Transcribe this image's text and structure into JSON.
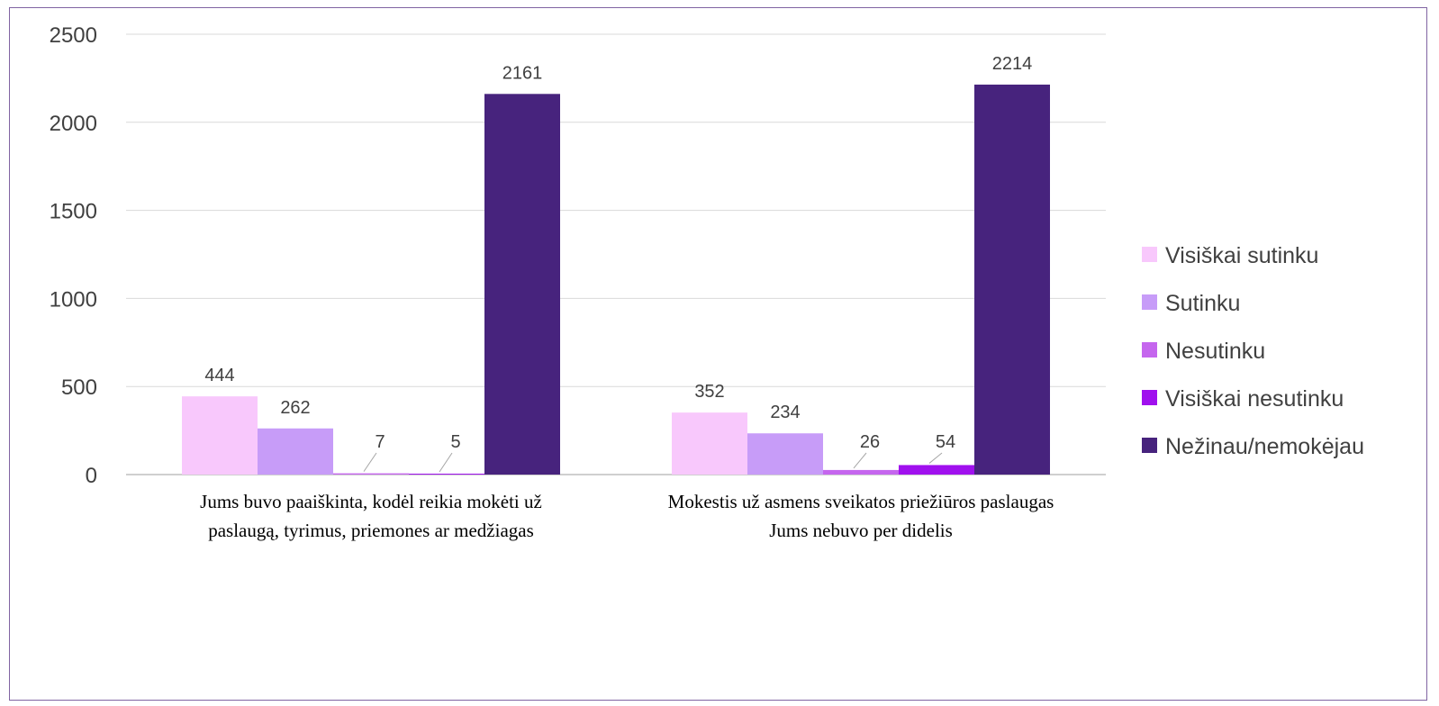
{
  "chart_data": {
    "type": "bar",
    "categories": [
      [
        "Jums buvo paaiškinta, kodėl reikia mokėti už",
        "paslaugą, tyrimus, priemones ar medžiagas"
      ],
      [
        "Mokestis už asmens sveikatos priežiūros paslaugas",
        "Jums nebuvo per didelis"
      ]
    ],
    "series": [
      {
        "name": "Visiškai sutinku",
        "color": "#f8c8fc",
        "values": [
          444,
          352
        ]
      },
      {
        "name": "Sutinku",
        "color": "#c79cf8",
        "values": [
          262,
          234
        ]
      },
      {
        "name": "Nesutinku",
        "color": "#c566ee",
        "values": [
          7,
          26
        ]
      },
      {
        "name": "Visiškai nesutinku",
        "color": "#a010ee",
        "values": [
          5,
          54
        ]
      },
      {
        "name": "Nežinau/nemokėjau",
        "color": "#47237d",
        "values": [
          2161,
          2214
        ]
      }
    ],
    "ylim": [
      0,
      2500
    ],
    "yticks": [
      0,
      500,
      1000,
      1500,
      2000,
      2500
    ],
    "grid": true,
    "legend_position": "right",
    "title": "",
    "xlabel": "",
    "ylabel": ""
  }
}
